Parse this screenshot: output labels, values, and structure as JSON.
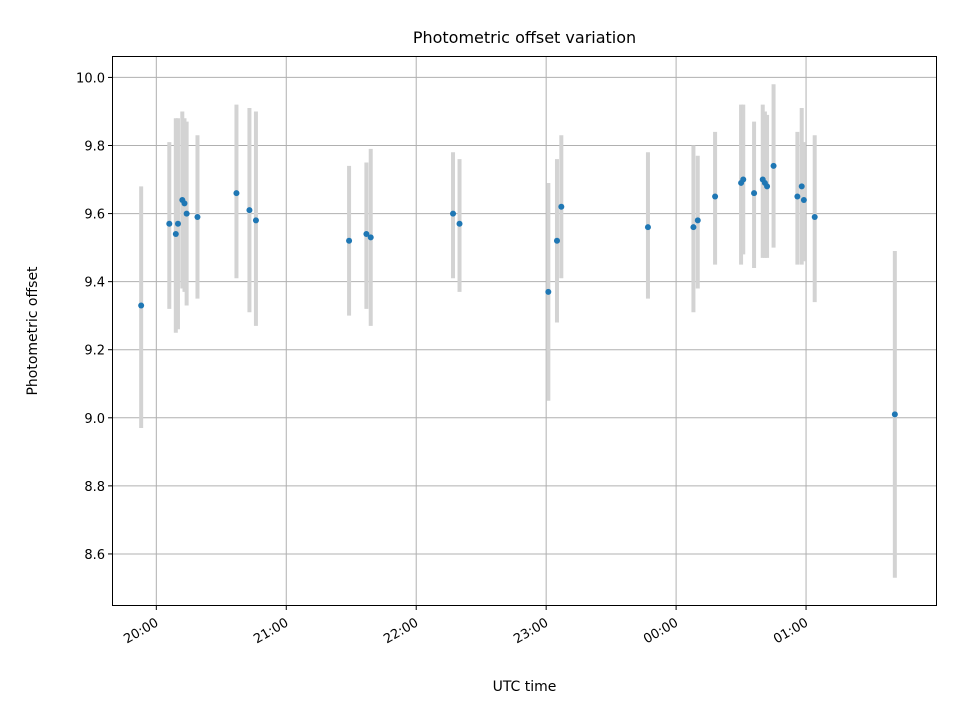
{
  "chart_data": {
    "type": "scatter",
    "title": "Photometric offset variation",
    "xlabel": "UTC time",
    "ylabel": "Photometric offset",
    "grid": true,
    "x_axis": {
      "kind": "time",
      "start": "19:40",
      "end": "02:00",
      "ticks": [
        "20:00",
        "21:00",
        "22:00",
        "23:00",
        "00:00",
        "01:00"
      ]
    },
    "ylim": [
      8.45,
      10.06
    ],
    "yticks": [
      "8.6",
      "8.8",
      "9.0",
      "9.2",
      "9.4",
      "9.6",
      "9.8",
      "10.0"
    ],
    "series": [
      {
        "marker_color": "#1f77b4",
        "errorbar_color": "#d3d3d3",
        "points": [
          {
            "t": "19:53",
            "y": 9.33,
            "lo": 8.97,
            "hi": 9.68
          },
          {
            "t": "20:06",
            "y": 9.57,
            "lo": 9.32,
            "hi": 9.81
          },
          {
            "t": "20:09",
            "y": 9.54,
            "lo": 9.25,
            "hi": 9.88
          },
          {
            "t": "20:10",
            "y": 9.57,
            "lo": 9.26,
            "hi": 9.88
          },
          {
            "t": "20:12",
            "y": 9.64,
            "lo": 9.38,
            "hi": 9.9
          },
          {
            "t": "20:13",
            "y": 9.63,
            "lo": 9.37,
            "hi": 9.88
          },
          {
            "t": "20:14",
            "y": 9.6,
            "lo": 9.33,
            "hi": 9.87
          },
          {
            "t": "20:19",
            "y": 9.59,
            "lo": 9.35,
            "hi": 9.83
          },
          {
            "t": "20:37",
            "y": 9.66,
            "lo": 9.41,
            "hi": 9.92
          },
          {
            "t": "20:43",
            "y": 9.61,
            "lo": 9.31,
            "hi": 9.91
          },
          {
            "t": "20:46",
            "y": 9.58,
            "lo": 9.27,
            "hi": 9.9
          },
          {
            "t": "21:29",
            "y": 9.52,
            "lo": 9.3,
            "hi": 9.74
          },
          {
            "t": "21:37",
            "y": 9.54,
            "lo": 9.32,
            "hi": 9.75
          },
          {
            "t": "21:39",
            "y": 9.53,
            "lo": 9.27,
            "hi": 9.79
          },
          {
            "t": "22:17",
            "y": 9.6,
            "lo": 9.41,
            "hi": 9.78
          },
          {
            "t": "22:20",
            "y": 9.57,
            "lo": 9.37,
            "hi": 9.76
          },
          {
            "t": "23:01",
            "y": 9.37,
            "lo": 9.05,
            "hi": 9.69
          },
          {
            "t": "23:05",
            "y": 9.52,
            "lo": 9.28,
            "hi": 9.76
          },
          {
            "t": "23:07",
            "y": 9.62,
            "lo": 9.41,
            "hi": 9.83
          },
          {
            "t": "23:47",
            "y": 9.56,
            "lo": 9.35,
            "hi": 9.78
          },
          {
            "t": "00:08",
            "y": 9.56,
            "lo": 9.31,
            "hi": 9.8
          },
          {
            "t": "00:10",
            "y": 9.58,
            "lo": 9.38,
            "hi": 9.77
          },
          {
            "t": "00:18",
            "y": 9.65,
            "lo": 9.45,
            "hi": 9.84
          },
          {
            "t": "00:30",
            "y": 9.69,
            "lo": 9.45,
            "hi": 9.92
          },
          {
            "t": "00:31",
            "y": 9.7,
            "lo": 9.48,
            "hi": 9.92
          },
          {
            "t": "00:36",
            "y": 9.66,
            "lo": 9.44,
            "hi": 9.87
          },
          {
            "t": "00:40",
            "y": 9.7,
            "lo": 9.47,
            "hi": 9.92
          },
          {
            "t": "00:41",
            "y": 9.69,
            "lo": 9.47,
            "hi": 9.9
          },
          {
            "t": "00:42",
            "y": 9.68,
            "lo": 9.47,
            "hi": 9.89
          },
          {
            "t": "00:45",
            "y": 9.74,
            "lo": 9.5,
            "hi": 9.98
          },
          {
            "t": "00:56",
            "y": 9.65,
            "lo": 9.45,
            "hi": 9.84
          },
          {
            "t": "00:58",
            "y": 9.68,
            "lo": 9.45,
            "hi": 9.91
          },
          {
            "t": "00:59",
            "y": 9.64,
            "lo": 9.46,
            "hi": 9.81
          },
          {
            "t": "01:04",
            "y": 9.59,
            "lo": 9.34,
            "hi": 9.83
          },
          {
            "t": "01:41",
            "y": 9.01,
            "lo": 8.53,
            "hi": 9.49
          }
        ]
      }
    ]
  }
}
